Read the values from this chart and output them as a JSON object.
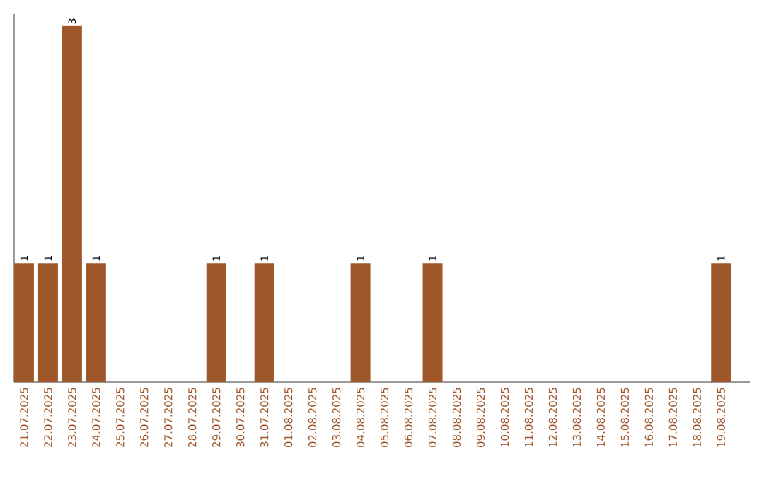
{
  "chart_data": {
    "type": "bar",
    "categories": [
      "21.07.2025",
      "22.07.2025",
      "23.07.2025",
      "24.07.2025",
      "25.07.2025",
      "26.07.2025",
      "27.07.2025",
      "28.07.2025",
      "29.07.2025",
      "30.07.2025",
      "31.07.2025",
      "01.08.2025",
      "02.08.2025",
      "03.08.2025",
      "04.08.2025",
      "05.08.2025",
      "06.08.2025",
      "07.08.2025",
      "08.08.2025",
      "09.08.2025",
      "10.08.2025",
      "11.08.2025",
      "12.08.2025",
      "13.08.2025",
      "14.08.2025",
      "15.08.2025",
      "16.08.2025",
      "17.08.2025",
      "18.08.2025",
      "19.08.2025"
    ],
    "values": [
      1,
      1,
      3,
      1,
      0,
      0,
      0,
      0,
      1,
      0,
      1,
      0,
      0,
      0,
      1,
      0,
      0,
      1,
      0,
      0,
      0,
      0,
      0,
      0,
      0,
      0,
      0,
      0,
      0,
      1
    ],
    "value_labels": [
      "1",
      "1",
      "3",
      "1",
      null,
      null,
      null,
      null,
      "1",
      null,
      "1",
      null,
      null,
      null,
      "1",
      null,
      null,
      "1",
      null,
      null,
      null,
      null,
      null,
      null,
      null,
      null,
      null,
      null,
      null,
      "1"
    ],
    "color": "#a0582a",
    "ylim": [
      0,
      3.1
    ],
    "tick_labels": "x"
  }
}
